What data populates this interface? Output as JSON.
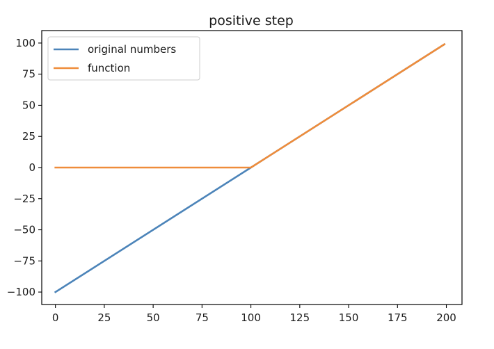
{
  "chart_data": {
    "type": "line",
    "title": "positive step",
    "xlabel": "",
    "ylabel": "",
    "xlim": [
      -7,
      208
    ],
    "ylim": [
      -110,
      110
    ],
    "xticks": [
      0,
      25,
      50,
      75,
      100,
      125,
      150,
      175,
      200
    ],
    "xtick_labels": [
      "0",
      "25",
      "50",
      "75",
      "100",
      "125",
      "150",
      "175",
      "200"
    ],
    "yticks": [
      100,
      75,
      50,
      25,
      0,
      -25,
      -50,
      -75,
      -100
    ],
    "ytick_labels": [
      "100",
      "75",
      "50",
      "25",
      "0",
      "−25",
      "−50",
      "−75",
      "−100"
    ],
    "grid": false,
    "legend_position": "top-left",
    "series": [
      {
        "name": "original numbers",
        "color": "#4c84b9",
        "x": [
          0,
          100,
          199
        ],
        "y": [
          -100,
          0,
          99
        ]
      },
      {
        "name": "function",
        "color": "#ef8c3a",
        "x": [
          0,
          100,
          199
        ],
        "y": [
          0,
          0,
          99
        ]
      }
    ]
  }
}
